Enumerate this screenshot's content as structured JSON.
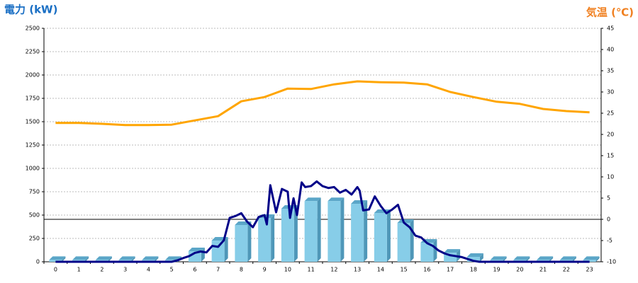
{
  "chart_data": {
    "type": "combo",
    "title": "電力 (kW)",
    "title_y2": "気温 (℃)",
    "categories": [
      "0",
      "1",
      "2",
      "3",
      "4",
      "5",
      "6",
      "7",
      "8",
      "9",
      "10",
      "11",
      "12",
      "13",
      "14",
      "15",
      "16",
      "17",
      "18",
      "19",
      "20",
      "21",
      "22",
      "23"
    ],
    "ylim": [
      0,
      2500
    ],
    "yticks": [
      0,
      250,
      500,
      750,
      1000,
      1250,
      1500,
      1750,
      2000,
      2250,
      2500
    ],
    "y2lim": [
      -10,
      45
    ],
    "y2ticks": [
      -10,
      -5,
      0,
      5,
      10,
      15,
      20,
      25,
      30,
      35,
      40,
      45
    ],
    "grid": true,
    "series": [
      {
        "type": "bar",
        "color": "#87cde8",
        "values": [
          20,
          20,
          20,
          20,
          20,
          20,
          114,
          227,
          394,
          470,
          568,
          650,
          650,
          621,
          523,
          417,
          205,
          98,
          53,
          20,
          20,
          20,
          20,
          20
        ]
      },
      {
        "type": "line",
        "color": "#000088",
        "x": [
          0,
          4.75,
          5,
          5.25,
          5.5,
          5.75,
          6,
          6.25,
          6.5,
          6.75,
          7,
          7.25,
          7.5,
          7.75,
          8,
          8.25,
          8.5,
          8.75,
          9,
          9.1,
          9.25,
          9.5,
          9.75,
          10,
          10.1,
          10.25,
          10.4,
          10.6,
          10.75,
          11,
          11.25,
          11.5,
          11.75,
          12,
          12.25,
          12.5,
          12.75,
          13,
          13.1,
          13.25,
          13.5,
          13.75,
          14,
          14.25,
          14.5,
          14.75,
          15,
          15.25,
          15.5,
          15.75,
          16,
          16.25,
          16.5,
          16.75,
          17,
          17.25,
          17.5,
          17.75,
          18,
          18.25,
          23
        ],
        "values": [
          0,
          0,
          0,
          15,
          40,
          60,
          95,
          110,
          100,
          170,
          160,
          230,
          470,
          490,
          520,
          430,
          370,
          480,
          500,
          400,
          820,
          530,
          780,
          750,
          470,
          680,
          500,
          850,
          800,
          810,
          860,
          810,
          790,
          800,
          740,
          770,
          720,
          800,
          760,
          550,
          560,
          700,
          600,
          520,
          560,
          610,
          420,
          370,
          280,
          260,
          200,
          170,
          120,
          90,
          70,
          60,
          50,
          30,
          10,
          0,
          0
        ]
      },
      {
        "type": "line",
        "axis": "y2",
        "color": "#ffa500",
        "values": [
          22.7,
          22.7,
          22.5,
          22.2,
          22.2,
          22.3,
          23.3,
          24.3,
          27.8,
          28.8,
          30.8,
          30.7,
          31.8,
          32.5,
          32.3,
          32.2,
          31.8,
          30,
          28.8,
          27.7,
          27.2,
          26,
          25.5,
          25.2
        ]
      }
    ]
  }
}
